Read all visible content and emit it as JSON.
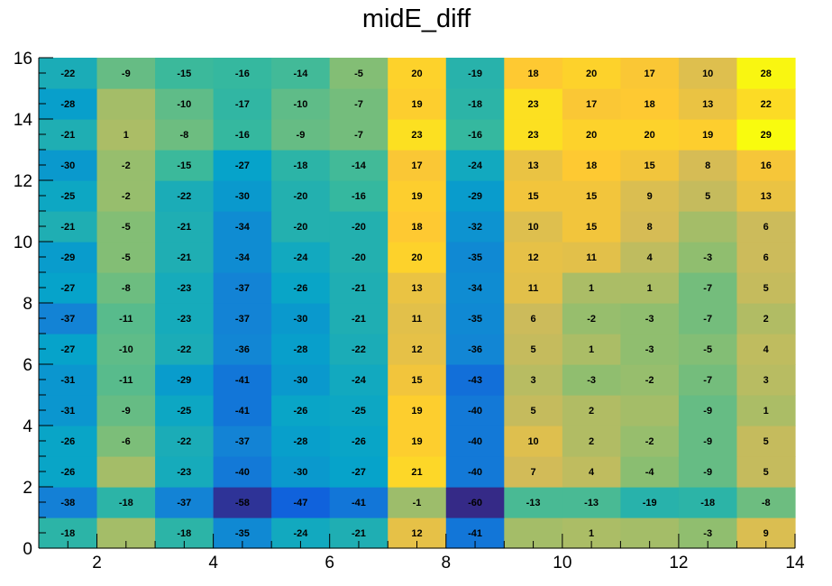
{
  "chart_data": {
    "type": "heatmap",
    "title": "midE_diff",
    "xlim": [
      1,
      14
    ],
    "ylim": [
      0,
      16
    ],
    "x_ticks": [
      2,
      4,
      6,
      8,
      10,
      12,
      14
    ],
    "y_ticks": [
      0,
      2,
      4,
      6,
      8,
      10,
      12,
      14,
      16
    ],
    "x_bin_edges": [
      1,
      2,
      3,
      4,
      5,
      6,
      7,
      8,
      9,
      10,
      11,
      12,
      13,
      14
    ],
    "y_bin_edges": [
      0,
      1,
      2,
      3,
      4,
      5,
      6,
      7,
      8,
      9,
      10,
      11,
      12,
      13,
      14,
      15,
      16
    ],
    "color_range": [
      -60,
      29
    ],
    "palette": "kBird",
    "rows": [
      [
        -18,
        0,
        -18,
        -35,
        -24,
        -21,
        12,
        -41,
        0,
        1,
        0,
        -3,
        9
      ],
      [
        -38,
        -18,
        -37,
        -58,
        -47,
        -41,
        -1,
        -60,
        -13,
        -13,
        -19,
        -18,
        -8
      ],
      [
        -26,
        0,
        -23,
        -40,
        -30,
        -27,
        21,
        -40,
        7,
        4,
        -4,
        -9,
        5
      ],
      [
        -26,
        -6,
        -22,
        -37,
        -28,
        -26,
        19,
        -40,
        10,
        2,
        -2,
        -9,
        5
      ],
      [
        -31,
        -9,
        -25,
        -41,
        -26,
        -25,
        19,
        -40,
        5,
        2,
        0,
        -9,
        1
      ],
      [
        -31,
        -11,
        -29,
        -41,
        -30,
        -24,
        15,
        -43,
        3,
        -3,
        -2,
        -7,
        3
      ],
      [
        -27,
        -10,
        -22,
        -36,
        -28,
        -22,
        12,
        -36,
        5,
        1,
        -3,
        -5,
        4
      ],
      [
        -37,
        -11,
        -23,
        -37,
        -30,
        -21,
        11,
        -35,
        6,
        -2,
        -3,
        -7,
        2
      ],
      [
        -27,
        -8,
        -23,
        -37,
        -26,
        -21,
        13,
        -34,
        11,
        1,
        1,
        -7,
        5
      ],
      [
        -29,
        -5,
        -21,
        -34,
        -24,
        -20,
        20,
        -35,
        12,
        11,
        4,
        -3,
        6
      ],
      [
        -21,
        -5,
        -21,
        -34,
        -20,
        -20,
        18,
        -32,
        10,
        15,
        8,
        0,
        6
      ],
      [
        -25,
        -2,
        -22,
        -30,
        -20,
        -16,
        19,
        -29,
        15,
        15,
        9,
        5,
        13
      ],
      [
        -30,
        -2,
        -15,
        -27,
        -18,
        -14,
        17,
        -24,
        13,
        18,
        15,
        8,
        16
      ],
      [
        -21,
        1,
        -8,
        -16,
        -9,
        -7,
        23,
        -16,
        23,
        20,
        20,
        19,
        29
      ],
      [
        -28,
        0,
        -10,
        -17,
        -10,
        -7,
        19,
        -18,
        23,
        17,
        18,
        13,
        22
      ],
      [
        -22,
        -9,
        -15,
        -16,
        -14,
        -5,
        20,
        -19,
        18,
        20,
        17,
        10,
        28
      ]
    ]
  }
}
